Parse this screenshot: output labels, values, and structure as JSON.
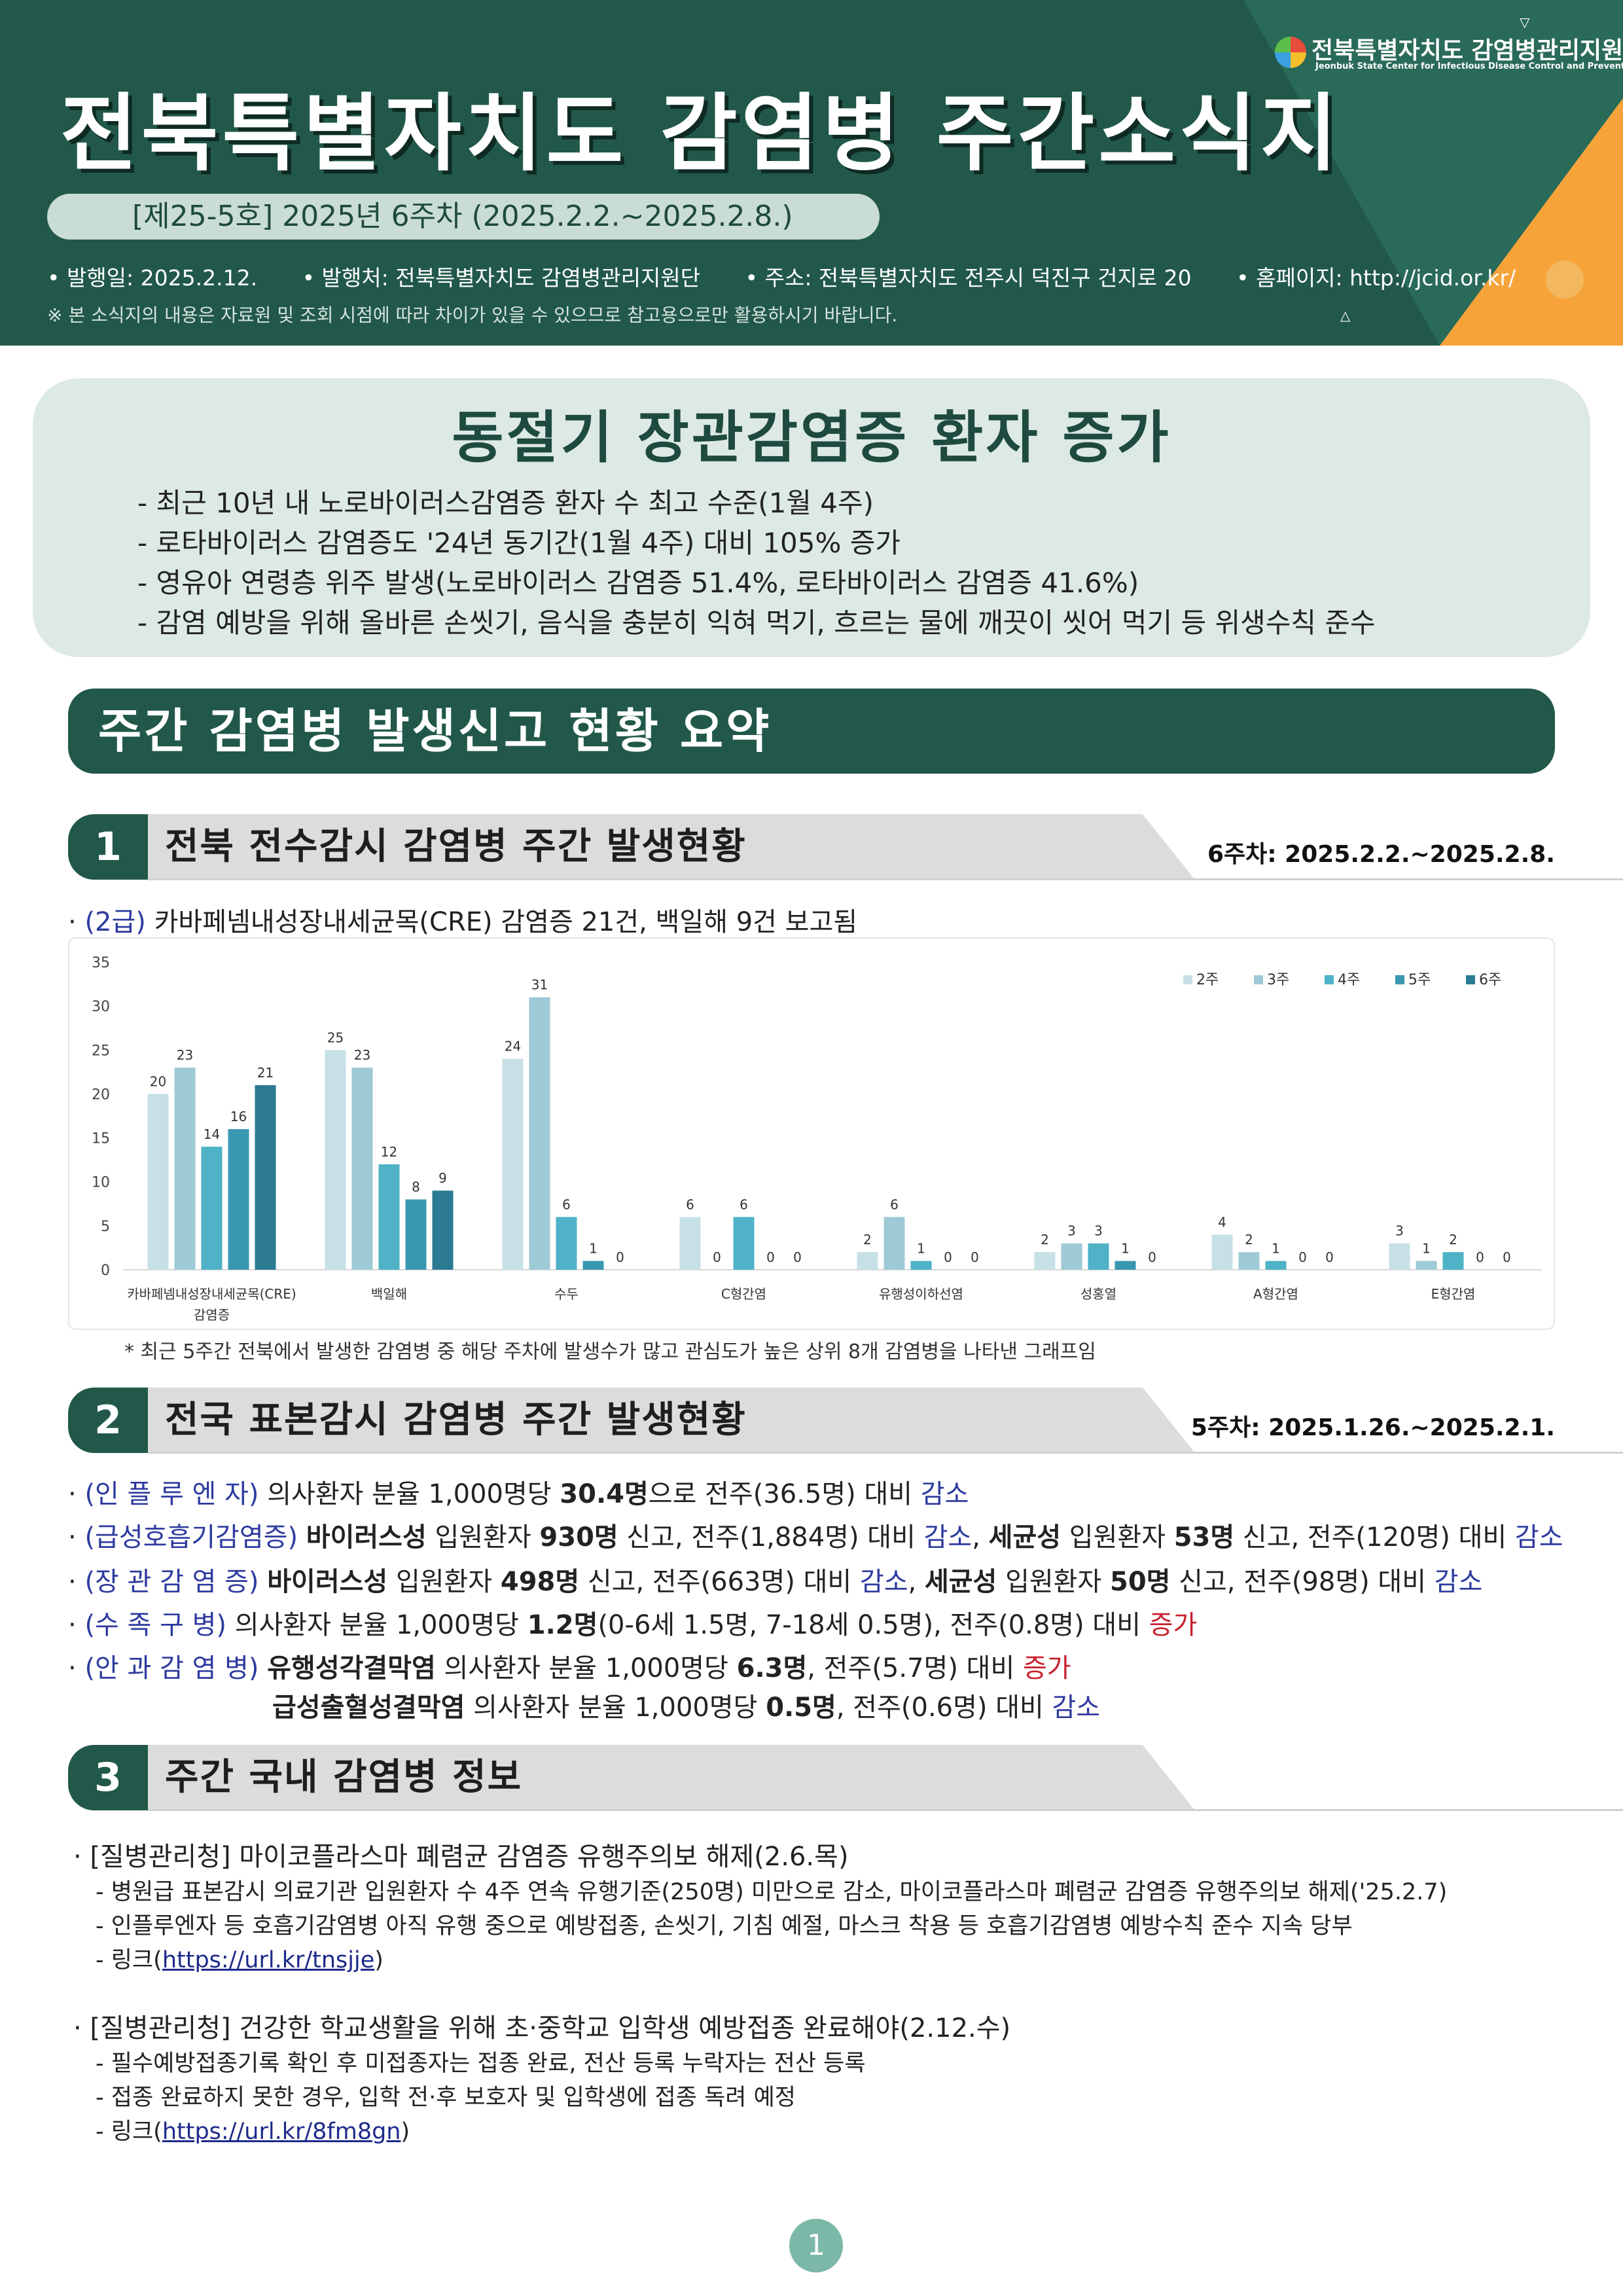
{
  "header": {
    "title": "전북특별자치도 감염병 주간소식지",
    "issue": "[제25-5호] 2025년 6주차 (2025.2.2.~2025.2.8.)",
    "meta": [
      "• 발행일: 2025.2.12.",
      "• 발행처: 전북특별자치도 감염병관리지원단",
      "• 주소: 전북특별자치도 전주시 덕진구 건지로 20",
      "• 홈페이지: http://jcid.or.kr/"
    ],
    "note": "※ 본 소식지의 내용은 자료원 및 조회 시점에 따라 차이가 있을 수 있으므로 참고용으로만 활용하시기 바랍니다.",
    "org": "전북특별자치도 감염병관리지원단",
    "org_en": "Jeonbuk State Center for Infectious Disease Control and Prevention"
  },
  "highlight": {
    "title": "동절기 장관감염증 환자 증가",
    "items": [
      "- 최근 10년 내 노로바이러스감염증 환자 수 최고 수준(1월 4주)",
      "- 로타바이러스 감염증도 '24년 동기간(1월 4주) 대비 105% 증가",
      "- 영유아 연령층 위주 발생(노로바이러스 감염증 51.4%, 로타바이러스 감염증 41.6%)",
      "- 감염 예방을 위해 올바른 손씻기, 음식을 충분히 익혀 먹기, 흐르는 물에 깨끗이 씻어 먹기 등 위생수칙 준수"
    ]
  },
  "summary_title": "주간 감염병 발생신고 현황 요약",
  "sec1": {
    "num": "1",
    "title": "전북 전수감시 감염병 주간 발생현황",
    "date": "6주차: 2025.2.2.~2025.2.8.",
    "bullet_grade": "(2급)",
    "bullet_text": "카바페넴내성장내세균목(CRE) 감염증 21건, 백일해 9건 보고됨",
    "footnote": "* 최근 5주간 전북에서 발생한 감염병 중 해당 주차에 발생수가 많고 관심도가 높은 상위 8개 감염병을 나타낸 그래프임"
  },
  "chart_data": {
    "type": "bar",
    "categories": [
      "카바페넴내성장내세균목(CRE) 감염증",
      "백일해",
      "수두",
      "C형간염",
      "유행성이하선염",
      "성홍열",
      "A형간염",
      "E형간염"
    ],
    "category_lines": [
      [
        "카바페넴내성장내세균목(CRE)",
        "감염증"
      ],
      [
        "백일해"
      ],
      [
        "수두"
      ],
      [
        "C형간염"
      ],
      [
        "유행성이하선염"
      ],
      [
        "성홍열"
      ],
      [
        "A형간염"
      ],
      [
        "E형간염"
      ]
    ],
    "series": [
      {
        "name": "2주",
        "color": "#c6e0e6",
        "values": [
          20,
          25,
          24,
          6,
          2,
          2,
          4,
          3
        ]
      },
      {
        "name": "3주",
        "color": "#9ecad6",
        "values": [
          23,
          23,
          31,
          0,
          6,
          3,
          2,
          1
        ]
      },
      {
        "name": "4주",
        "color": "#4fb2c7",
        "values": [
          14,
          12,
          6,
          6,
          1,
          3,
          1,
          2
        ]
      },
      {
        "name": "5주",
        "color": "#3a97b0",
        "values": [
          16,
          8,
          1,
          0,
          0,
          1,
          0,
          0
        ]
      },
      {
        "name": "6주",
        "color": "#2c7a93",
        "values": [
          21,
          9,
          0,
          0,
          0,
          0,
          0,
          0
        ]
      }
    ],
    "ylim": [
      0,
      35
    ],
    "yticks": [
      0,
      5,
      10,
      15,
      20,
      25,
      30,
      35
    ],
    "legend": "top-right",
    "grid": false
  },
  "sec2": {
    "num": "2",
    "title": "전국 표본감시 감염병 주간 발생현황",
    "date": "5주차: 2025.1.26.~2025.2.1.",
    "rows": [
      [
        {
          "t": "· ",
          "c": ""
        },
        {
          "t": "(인 플 루 엔 자)",
          "c": "blue"
        },
        {
          "t": " 의사환자 분율 1,000명당 ",
          "c": ""
        },
        {
          "t": "30.4명",
          "c": "b"
        },
        {
          "t": "으로 전주(36.5명) 대비 ",
          "c": ""
        },
        {
          "t": "감소",
          "c": "blue"
        }
      ],
      [
        {
          "t": "· ",
          "c": ""
        },
        {
          "t": "(급성호흡기감염증)",
          "c": "blue"
        },
        {
          "t": " ",
          "c": ""
        },
        {
          "t": "바이러스성",
          "c": "b"
        },
        {
          "t": " 입원환자 ",
          "c": ""
        },
        {
          "t": "930명",
          "c": "b"
        },
        {
          "t": " 신고, 전주(1,884명) 대비 ",
          "c": ""
        },
        {
          "t": "감소",
          "c": "blue"
        },
        {
          "t": ", ",
          "c": ""
        },
        {
          "t": "세균성",
          "c": "b"
        },
        {
          "t": " 입원환자 ",
          "c": ""
        },
        {
          "t": "53명",
          "c": "b"
        },
        {
          "t": " 신고, 전주(120명) 대비 ",
          "c": ""
        },
        {
          "t": "감소",
          "c": "blue"
        }
      ],
      [
        {
          "t": "· ",
          "c": ""
        },
        {
          "t": "(장 관 감 염 증)",
          "c": "blue"
        },
        {
          "t": " ",
          "c": ""
        },
        {
          "t": "바이러스성",
          "c": "b"
        },
        {
          "t": " 입원환자 ",
          "c": ""
        },
        {
          "t": "498명",
          "c": "b"
        },
        {
          "t": " 신고, 전주(663명) 대비 ",
          "c": ""
        },
        {
          "t": "감소",
          "c": "blue"
        },
        {
          "t": ", ",
          "c": ""
        },
        {
          "t": "세균성",
          "c": "b"
        },
        {
          "t": " 입원환자 ",
          "c": ""
        },
        {
          "t": "50명",
          "c": "b"
        },
        {
          "t": " 신고, 전주(98명) 대비 ",
          "c": ""
        },
        {
          "t": "감소",
          "c": "blue"
        }
      ],
      [
        {
          "t": "· ",
          "c": ""
        },
        {
          "t": "(수  족  구  병)",
          "c": "blue"
        },
        {
          "t": " 의사환자 분율 1,000명당 ",
          "c": ""
        },
        {
          "t": "1.2명",
          "c": "b"
        },
        {
          "t": "(0-6세 1.5명, 7-18세 0.5명), 전주(0.8명) 대비 ",
          "c": ""
        },
        {
          "t": "증가",
          "c": "red"
        }
      ],
      [
        {
          "t": "· ",
          "c": ""
        },
        {
          "t": "(안 과 감 염 병)",
          "c": "blue"
        },
        {
          "t": " ",
          "c": ""
        },
        {
          "t": "유행성각결막염",
          "c": "b"
        },
        {
          "t": " 의사환자 분율 1,000명당 ",
          "c": ""
        },
        {
          "t": "6.3명",
          "c": "b"
        },
        {
          "t": ", 전주(5.7명) 대비 ",
          "c": ""
        },
        {
          "t": "증가",
          "c": "red"
        }
      ],
      [
        {
          "t": "급성출혈성결막염",
          "c": "b"
        },
        {
          "t": " 의사환자 분율 1,000명당 ",
          "c": ""
        },
        {
          "t": "0.5명",
          "c": "b"
        },
        {
          "t": ", 전주(0.6명) 대비 ",
          "c": ""
        },
        {
          "t": "감소",
          "c": "blue"
        }
      ]
    ]
  },
  "sec3": {
    "num": "3",
    "title": "주간 국내 감염병 정보",
    "items": [
      {
        "head": "· [질병관리청] 마이코플라스마 폐렴균 감염증 유행주의보 해제(2.6.목)",
        "lines": [
          "- 병원급 표본감시 의료기관 입원환자 수 4주 연속 유행기준(250명) 미만으로 감소, 마이코플라스마 폐렴균 감염증 유행주의보 해제('25.2.7)",
          "- 인플루엔자 등 호흡기감염병 아직 유행 중으로 예방접종, 손씻기, 기침 예절, 마스크 착용 등 호흡기감염병 예방수칙 준수 지속 당부"
        ],
        "link_prefix": "- 링크(",
        "link": "https://url.kr/tnsjje",
        "link_suffix": ")"
      },
      {
        "head": "· [질병관리청] 건강한 학교생활을 위해 초·중학교 입학생 예방접종 완료해야(2.12.수)",
        "lines": [
          "- 필수예방접종기록 확인 후 미접종자는 접종 완료, 전산 등록 누락자는 전산 등록",
          "- 접종 완료하지 못한 경우, 입학 전·후 보호자 및 입학생에 접종 독려 예정"
        ],
        "link_prefix": "- 링크(",
        "link": "https://url.kr/8fm8gn",
        "link_suffix": ")"
      }
    ]
  },
  "page_number": "1"
}
